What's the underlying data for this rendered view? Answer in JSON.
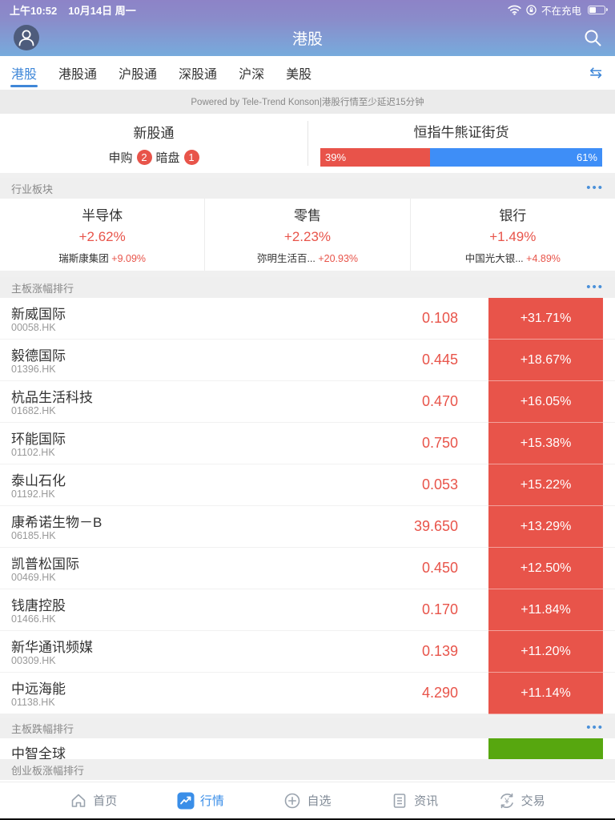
{
  "status_bar": {
    "time": "上午10:52",
    "date": "10月14日 周一",
    "battery_status": "不在充电"
  },
  "header": {
    "title": "港股"
  },
  "tab_bar": {
    "tabs": [
      {
        "label": "港股"
      },
      {
        "label": "港股通"
      },
      {
        "label": "沪股通"
      },
      {
        "label": "深股通"
      },
      {
        "label": "沪深"
      },
      {
        "label": "美股"
      }
    ],
    "active_index": 0
  },
  "notice": {
    "text": "Powered by Tele-Trend Konson|港股行情至少延迟15分钟"
  },
  "market_summary": {
    "ipo": {
      "title": "新股通",
      "subscribe_label": "申购",
      "subscribe_count": "2",
      "dark_pool_label": "暗盘",
      "dark_pool_count": "1"
    },
    "cbbc": {
      "title": "恒指牛熊证街货",
      "bull_label": "39%",
      "bear_label": "61%",
      "bull_value": 39,
      "bear_value": 61
    }
  },
  "sectors": {
    "header": "行业板块",
    "cards": [
      {
        "name": "半导体",
        "change": "+2.62%",
        "top_stock": "瑞斯康集团",
        "top_change": "+9.09%"
      },
      {
        "name": "零售",
        "change": "+2.23%",
        "top_stock": "弥明生活百...",
        "top_change": "+20.93%"
      },
      {
        "name": "银行",
        "change": "+1.49%",
        "top_stock": "中国光大银...",
        "top_change": "+4.89%"
      }
    ]
  },
  "main_gainers": {
    "header": "主板涨幅排行",
    "rows": [
      {
        "name": "新威国际",
        "code": "00058.HK",
        "price": "0.108",
        "change": "+31.71%"
      },
      {
        "name": "毅德国际",
        "code": "01396.HK",
        "price": "0.445",
        "change": "+18.67%"
      },
      {
        "name": "杭品生活科技",
        "code": "01682.HK",
        "price": "0.470",
        "change": "+16.05%"
      },
      {
        "name": "环能国际",
        "code": "01102.HK",
        "price": "0.750",
        "change": "+15.38%"
      },
      {
        "name": "泰山石化",
        "code": "01192.HK",
        "price": "0.053",
        "change": "+15.22%"
      },
      {
        "name": "康希诺生物－B",
        "code": "06185.HK",
        "price": "39.650",
        "change": "+13.29%"
      },
      {
        "name": "凯普松国际",
        "code": "00469.HK",
        "price": "0.450",
        "change": "+12.50%"
      },
      {
        "name": "钱唐控股",
        "code": "01466.HK",
        "price": "0.170",
        "change": "+11.84%"
      },
      {
        "name": "新华通讯频媒",
        "code": "00309.HK",
        "price": "0.139",
        "change": "+11.20%"
      },
      {
        "name": "中远海能",
        "code": "01138.HK",
        "price": "4.290",
        "change": "+11.14%"
      }
    ]
  },
  "main_losers": {
    "header": "主板跌幅排行",
    "partial_row": {
      "name": "中智全球"
    }
  },
  "gem_gainers": {
    "header": "创业板涨幅排行"
  },
  "bottom_nav": {
    "items": [
      {
        "label": "首页"
      },
      {
        "label": "行情"
      },
      {
        "label": "自选"
      },
      {
        "label": "资讯"
      },
      {
        "label": "交易"
      }
    ]
  },
  "colors": {
    "up_red": "#e8544a",
    "down_green": "#57a70f",
    "accent_blue": "#3f87d8"
  }
}
